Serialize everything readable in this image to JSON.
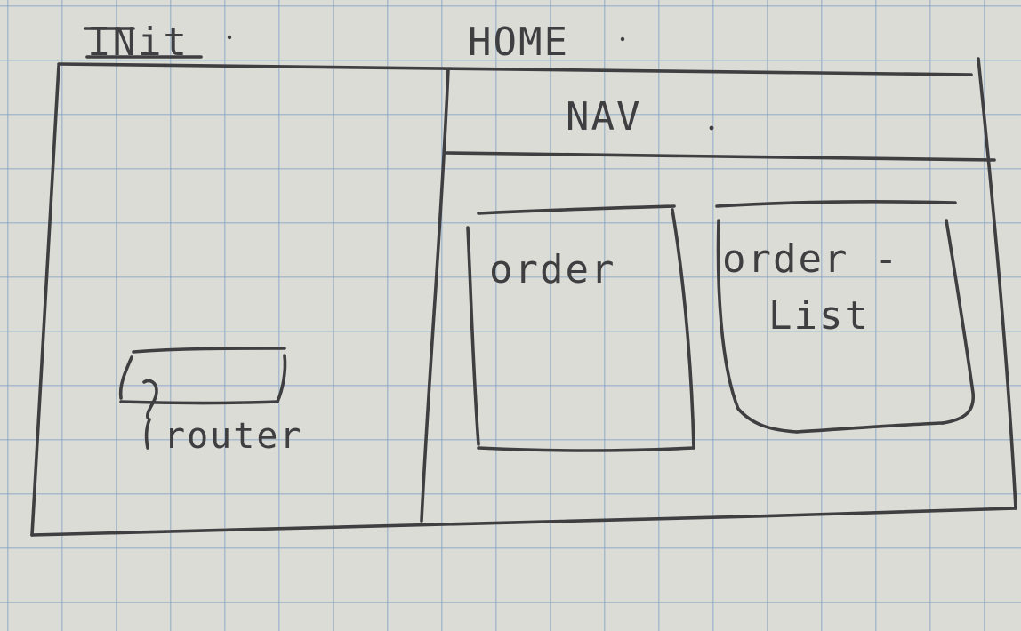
{
  "sketch": {
    "init_label": "INit",
    "home_label": "HOME",
    "nav_label": "NAV",
    "router_label": "router",
    "order_label": "order",
    "order_list_label_line1": "order -",
    "order_list_label_line2": "List"
  },
  "colors": {
    "paper": "#dcdcd6",
    "grid": "#7da0c3",
    "ink": "#3f3f42"
  }
}
